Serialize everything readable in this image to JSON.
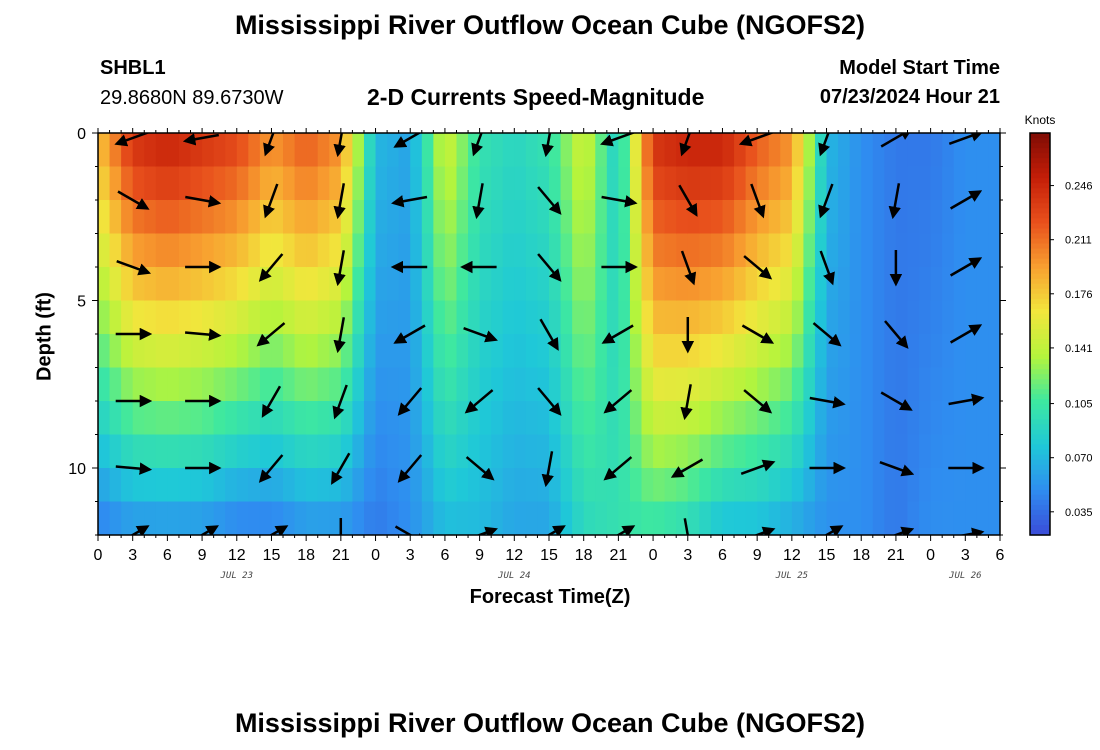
{
  "title": "Mississippi River Outflow Ocean Cube (NGOFS2)",
  "station": {
    "id": "SHBL1",
    "coords": "29.8680N  89.6730W"
  },
  "model_start": {
    "label": "Model Start Time",
    "value": "07/23/2024 Hour 21"
  },
  "footer_title": "Mississippi River Outflow Ocean Cube (NGOFS2)",
  "chart_data": {
    "type": "heatmap",
    "subtitle": "2-D Currents Speed-Magnitude",
    "xlabel": "Forecast Time(Z)",
    "ylabel": "Depth (ft)",
    "x_range_hours": [
      0,
      78
    ],
    "x_tick_labels": [
      "0",
      "3",
      "6",
      "9",
      "12",
      "15",
      "18",
      "21",
      "0",
      "3",
      "6",
      "9",
      "12",
      "15",
      "18",
      "21",
      "0",
      "3",
      "6",
      "9",
      "12",
      "15",
      "18",
      "21",
      "0",
      "3",
      "6"
    ],
    "date_labels": [
      {
        "text": "JUL 23",
        "hour": 12
      },
      {
        "text": "JUL 24",
        "hour": 36
      },
      {
        "text": "JUL 25",
        "hour": 60
      },
      {
        "text": "JUL 26",
        "hour": 75
      }
    ],
    "ylim": [
      0,
      12
    ],
    "y_tick_labels": [
      "0",
      "5",
      "10"
    ],
    "y_tick_values": [
      0,
      5,
      10
    ],
    "colorbar": {
      "unit": "Knots",
      "range": [
        0.02,
        0.28
      ],
      "tick_labels": [
        "0.246",
        "0.211",
        "0.176",
        "0.141",
        "0.105",
        "0.070",
        "0.035"
      ],
      "tick_values": [
        0.246,
        0.211,
        0.176,
        0.141,
        0.105,
        0.07,
        0.035
      ],
      "colors": [
        "#3a4bd8",
        "#2f8df0",
        "#1fc8d8",
        "#3ee8a0",
        "#b4f43c",
        "#f2e63c",
        "#f8a030",
        "#e8501c",
        "#c41e08",
        "#800c04"
      ]
    },
    "speed_profile_hours": [
      0,
      3,
      6,
      9,
      12,
      15,
      18,
      21,
      24,
      27,
      30,
      33,
      36,
      39,
      42,
      45,
      48,
      51,
      54,
      57,
      60,
      63,
      66,
      69,
      72,
      75,
      78
    ],
    "speed_profile_surface": [
      0.18,
      0.24,
      0.25,
      0.24,
      0.23,
      0.2,
      0.22,
      0.2,
      0.07,
      0.06,
      0.15,
      0.1,
      0.09,
      0.1,
      0.15,
      0.08,
      0.24,
      0.25,
      0.25,
      0.22,
      0.2,
      0.07,
      0.05,
      0.04,
      0.04,
      0.05,
      0.05
    ],
    "speed_profile_bottom": [
      0.04,
      0.05,
      0.05,
      0.05,
      0.04,
      0.04,
      0.05,
      0.05,
      0.04,
      0.05,
      0.07,
      0.07,
      0.06,
      0.06,
      0.09,
      0.1,
      0.1,
      0.09,
      0.07,
      0.07,
      0.06,
      0.05,
      0.05,
      0.04,
      0.05,
      0.05,
      0.05
    ],
    "vector_depths": [
      0,
      2,
      4,
      6,
      8,
      10,
      12
    ],
    "vector_hours": [
      3,
      9,
      15,
      21,
      27,
      33,
      39,
      45,
      51,
      57,
      63,
      69,
      75
    ],
    "vector_directions_deg": [
      [
        250,
        260,
        200,
        190,
        240,
        200,
        190,
        250,
        200,
        250,
        200,
        60,
        70
      ],
      [
        120,
        100,
        200,
        190,
        260,
        190,
        140,
        100,
        150,
        160,
        200,
        190,
        60
      ],
      [
        110,
        90,
        220,
        190,
        270,
        270,
        140,
        90,
        160,
        130,
        160,
        180,
        60
      ],
      [
        90,
        95,
        230,
        190,
        240,
        110,
        150,
        240,
        180,
        120,
        130,
        140,
        60
      ],
      [
        90,
        90,
        210,
        200,
        220,
        230,
        140,
        230,
        190,
        130,
        100,
        120,
        80
      ],
      [
        95,
        90,
        220,
        210,
        220,
        130,
        190,
        230,
        240,
        70,
        90,
        110,
        90
      ],
      [
        60,
        60,
        60,
        180,
        120,
        70,
        60,
        60,
        170,
        70,
        60,
        70,
        80
      ]
    ],
    "vector_unit": "Knots"
  }
}
